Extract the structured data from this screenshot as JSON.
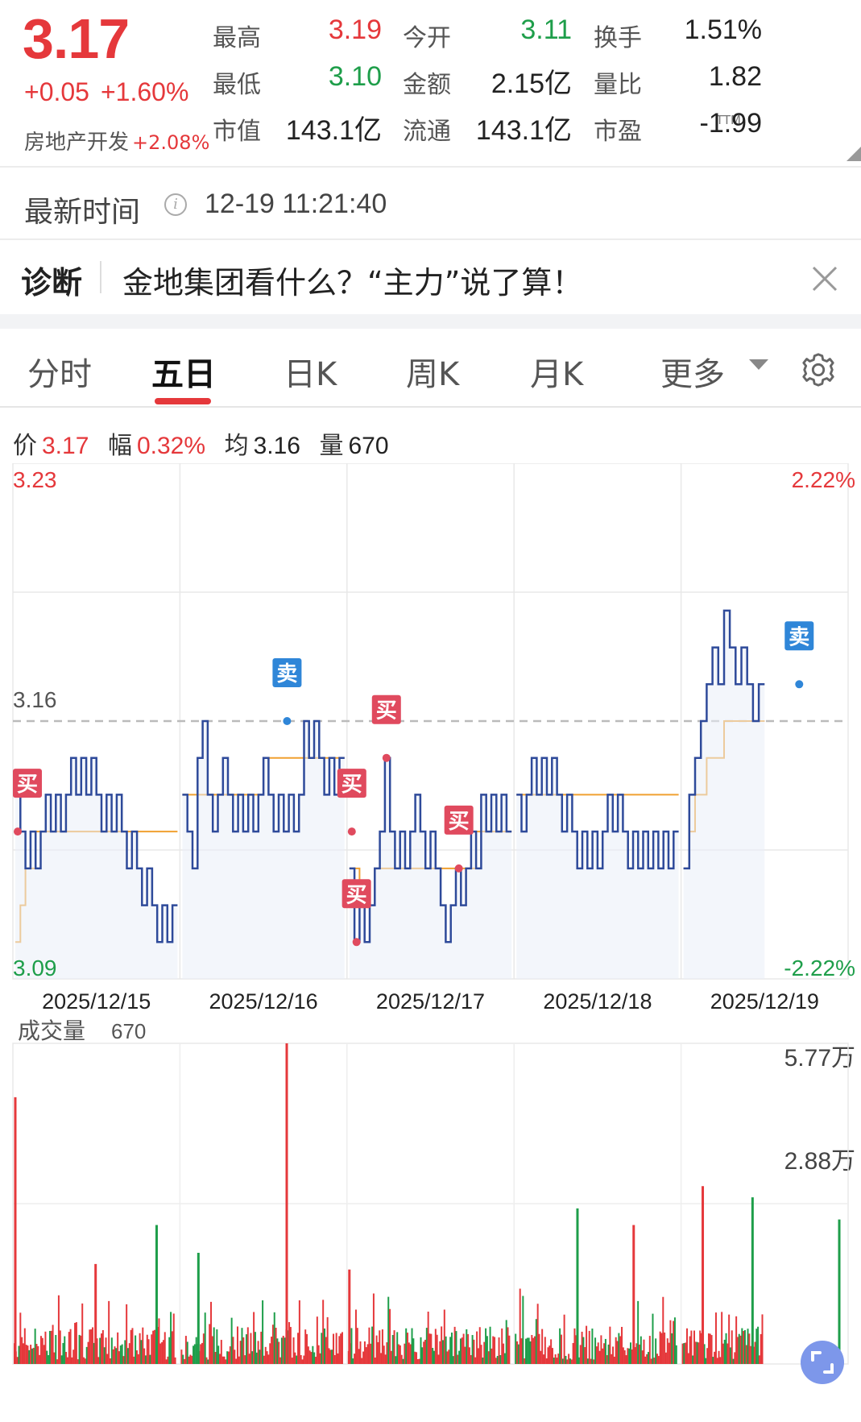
{
  "quote": {
    "price": "3.17",
    "change": "+0.05",
    "change_pct": "+1.60%",
    "sector_name": "房地产开发",
    "sector_pct": "+2.08%",
    "stats": [
      {
        "label": "最高",
        "value": "3.19",
        "color": "red"
      },
      {
        "label": "今开",
        "value": "3.11",
        "color": "green"
      },
      {
        "label": "换手",
        "value": "1.51%",
        "color": "dark"
      },
      {
        "label": "最低",
        "value": "3.10",
        "color": "green"
      },
      {
        "label": "金额",
        "value": "2.15亿",
        "color": "dark"
      },
      {
        "label": "量比",
        "value": "1.82",
        "color": "dark"
      },
      {
        "label": "市值",
        "value": "143.1亿",
        "color": "dark"
      },
      {
        "label": "流通",
        "value": "143.1亿",
        "color": "dark"
      },
      {
        "label": "市盈",
        "value": "-1.99",
        "color": "dark"
      }
    ],
    "pe_superscript": "TTM"
  },
  "time_row": {
    "label": "最新时间",
    "value": "12-19 11:21:40"
  },
  "diagnosis": {
    "title": "诊断",
    "text": "金地集团看什么？“主力”说了算！"
  },
  "tabs": [
    {
      "label": "分时",
      "active": false
    },
    {
      "label": "五日",
      "active": true
    },
    {
      "label": "日K",
      "active": false
    },
    {
      "label": "周K",
      "active": false
    },
    {
      "label": "月K",
      "active": false
    },
    {
      "label": "更多",
      "active": false
    }
  ],
  "info_line": {
    "price_label": "价",
    "price": "3.17",
    "range_label": "幅",
    "range": "0.32%",
    "avg_label": "均",
    "avg": "3.16",
    "vol_label": "量",
    "vol": "670"
  },
  "colors": {
    "up": "#e5383b",
    "down": "#1e9e4a",
    "price_line": "#2e4a9a",
    "avg_line": "#f0a030",
    "buy_badge": "#e04a5e",
    "sell_badge": "#2f86d8"
  },
  "chart_data": {
    "type": "line",
    "y_max_label": "3.23",
    "y_ref_label": "3.16",
    "y_min_label": "3.09",
    "pct_max_label": "2.22%",
    "pct_min_label": "-2.22%",
    "ylim": [
      3.09,
      3.23
    ],
    "reference_price": 3.16,
    "days": [
      "2025/12/15",
      "2025/12/16",
      "2025/12/17",
      "2025/12/18",
      "2025/12/19"
    ],
    "price_series": {
      "name": "价",
      "segments": [
        [
          3.14,
          3.13,
          3.12,
          3.13,
          3.12,
          3.13,
          3.14,
          3.13,
          3.14,
          3.13,
          3.14,
          3.15,
          3.14,
          3.15,
          3.14,
          3.15,
          3.14,
          3.13,
          3.14,
          3.13,
          3.14,
          3.13,
          3.12,
          3.13,
          3.12,
          3.11,
          3.12,
          3.11,
          3.1,
          3.11,
          3.1,
          3.11
        ],
        [
          3.14,
          3.13,
          3.12,
          3.15,
          3.16,
          3.14,
          3.13,
          3.14,
          3.15,
          3.14,
          3.13,
          3.14,
          3.13,
          3.14,
          3.13,
          3.14,
          3.15,
          3.14,
          3.13,
          3.14,
          3.13,
          3.14,
          3.13,
          3.14,
          3.16,
          3.15,
          3.16,
          3.15,
          3.14,
          3.15,
          3.14,
          3.15
        ],
        [
          3.12,
          3.1,
          3.11,
          3.1,
          3.11,
          3.12,
          3.13,
          3.15,
          3.13,
          3.12,
          3.13,
          3.12,
          3.13,
          3.14,
          3.13,
          3.12,
          3.13,
          3.12,
          3.11,
          3.1,
          3.11,
          3.12,
          3.11,
          3.12,
          3.13,
          3.12,
          3.14,
          3.13,
          3.14,
          3.13,
          3.14,
          3.13
        ],
        [
          3.14,
          3.13,
          3.14,
          3.15,
          3.14,
          3.15,
          3.14,
          3.15,
          3.14,
          3.13,
          3.14,
          3.13,
          3.12,
          3.13,
          3.12,
          3.13,
          3.12,
          3.13,
          3.14,
          3.13,
          3.14,
          3.13,
          3.12,
          3.13,
          3.12,
          3.13,
          3.12,
          3.13,
          3.12,
          3.13,
          3.12,
          3.13
        ],
        [
          3.12,
          3.14,
          3.15,
          3.16,
          3.17,
          3.18,
          3.17,
          3.19,
          3.18,
          3.17,
          3.18,
          3.17,
          3.16,
          3.17
        ]
      ]
    },
    "avg_series": {
      "name": "均",
      "segments": [
        [
          3.1,
          3.11,
          3.12,
          3.12,
          3.13,
          3.13,
          3.13,
          3.13,
          3.13,
          3.13,
          3.13,
          3.13,
          3.13,
          3.13,
          3.13,
          3.13,
          3.13,
          3.13,
          3.13,
          3.13,
          3.13,
          3.13,
          3.13,
          3.13,
          3.13,
          3.13,
          3.13,
          3.13,
          3.13,
          3.13,
          3.13,
          3.13
        ],
        [
          3.14,
          3.14,
          3.14,
          3.14,
          3.14,
          3.14,
          3.14,
          3.14,
          3.14,
          3.14,
          3.14,
          3.14,
          3.14,
          3.14,
          3.14,
          3.14,
          3.15,
          3.15,
          3.15,
          3.15,
          3.15,
          3.15,
          3.15,
          3.15,
          3.15,
          3.15,
          3.15,
          3.15,
          3.15,
          3.15,
          3.15,
          3.15
        ],
        [
          3.12,
          3.12,
          3.11,
          3.11,
          3.11,
          3.12,
          3.12,
          3.12,
          3.12,
          3.12,
          3.12,
          3.12,
          3.12,
          3.12,
          3.12,
          3.12,
          3.12,
          3.12,
          3.12,
          3.12,
          3.12,
          3.12,
          3.12,
          3.12,
          3.12,
          3.13,
          3.13,
          3.13,
          3.13,
          3.13,
          3.13,
          3.13
        ],
        [
          3.14,
          3.14,
          3.14,
          3.14,
          3.14,
          3.14,
          3.14,
          3.14,
          3.14,
          3.14,
          3.14,
          3.14,
          3.14,
          3.14,
          3.14,
          3.14,
          3.14,
          3.14,
          3.14,
          3.14,
          3.14,
          3.14,
          3.14,
          3.14,
          3.14,
          3.14,
          3.14,
          3.14,
          3.14,
          3.14,
          3.14,
          3.14
        ],
        [
          3.12,
          3.13,
          3.14,
          3.14,
          3.15,
          3.15,
          3.15,
          3.16,
          3.16,
          3.16,
          3.16,
          3.16,
          3.16,
          3.16
        ]
      ]
    },
    "signals": [
      {
        "label": "买",
        "type": "buy",
        "day": 0,
        "frac": 0.0,
        "price": 3.13
      },
      {
        "label": "卖",
        "type": "sell",
        "day": 1,
        "frac": 0.65,
        "price": 3.16
      },
      {
        "label": "买",
        "type": "buy",
        "day": 2,
        "frac": 0.0,
        "price": 3.13
      },
      {
        "label": "买",
        "type": "buy",
        "day": 2,
        "frac": 0.03,
        "price": 3.1
      },
      {
        "label": "买",
        "type": "buy",
        "day": 2,
        "frac": 0.22,
        "price": 3.15
      },
      {
        "label": "买",
        "type": "buy",
        "day": 2,
        "frac": 0.68,
        "price": 3.12
      },
      {
        "label": "卖",
        "type": "sell",
        "day": 4,
        "frac": 0.72,
        "price": 3.17
      }
    ]
  },
  "volume": {
    "title": "成交量",
    "value": "670",
    "max_label": "5.77万",
    "mid_label": "2.88万",
    "ylim": [
      0,
      57700
    ],
    "peaks": [
      {
        "day": 0,
        "frac": 0.0,
        "value": 48000,
        "dir": "up"
      },
      {
        "day": 0,
        "frac": 0.5,
        "value": 18000,
        "dir": "up"
      },
      {
        "day": 0,
        "frac": 0.88,
        "value": 25000,
        "dir": "down"
      },
      {
        "day": 1,
        "frac": 0.1,
        "value": 20000,
        "dir": "down"
      },
      {
        "day": 1,
        "frac": 0.65,
        "value": 57700,
        "dir": "up"
      },
      {
        "day": 2,
        "frac": 0.0,
        "value": 17000,
        "dir": "up"
      },
      {
        "day": 3,
        "frac": 0.38,
        "value": 28000,
        "dir": "down"
      },
      {
        "day": 3,
        "frac": 0.73,
        "value": 25000,
        "dir": "up"
      },
      {
        "day": 4,
        "frac": 0.12,
        "value": 32000,
        "dir": "up"
      },
      {
        "day": 4,
        "frac": 0.43,
        "value": 30000,
        "dir": "down"
      },
      {
        "day": 4,
        "frac": 0.97,
        "value": 26000,
        "dir": "down"
      }
    ]
  }
}
